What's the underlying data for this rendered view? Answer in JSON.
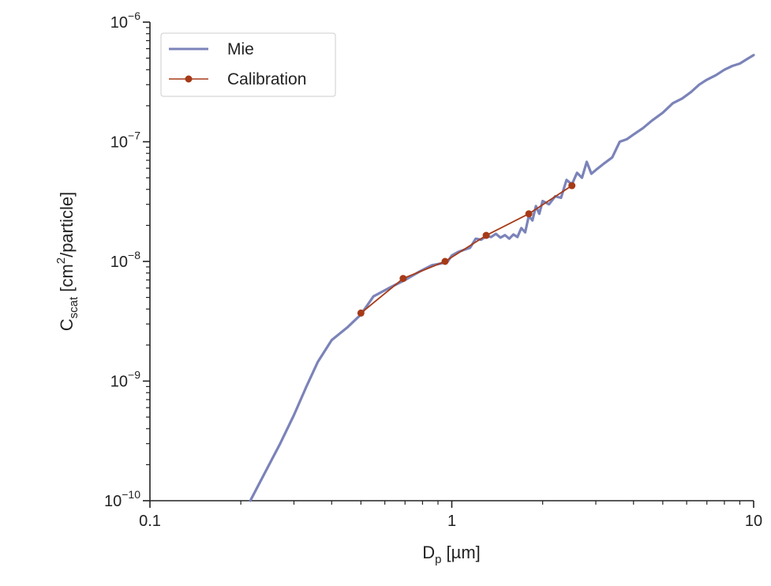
{
  "chart_data": {
    "type": "line",
    "xlabel_main": "D",
    "xlabel_sub": "p",
    "xlabel_rest": " [µm]",
    "ylabel_main": "C",
    "ylabel_sub": "scat",
    "ylabel_rest1": " [cm",
    "ylabel_sup": "2",
    "ylabel_rest2": "/particle]",
    "x_scale": "log",
    "y_scale": "log",
    "xlim": [
      0.1,
      10
    ],
    "ylim": [
      1e-10,
      1e-06
    ],
    "x_ticks": [
      {
        "value": 0.1,
        "label": "0.1"
      },
      {
        "value": 1,
        "label": "1"
      },
      {
        "value": 10,
        "label": "10"
      }
    ],
    "y_ticks": [
      {
        "value": 1e-10,
        "base": "10",
        "exp": "−10"
      },
      {
        "value": 1e-09,
        "base": "10",
        "exp": "−9"
      },
      {
        "value": 1e-08,
        "base": "10",
        "exp": "−8"
      },
      {
        "value": 1e-07,
        "base": "10",
        "exp": "−7"
      },
      {
        "value": 1e-06,
        "base": "10",
        "exp": "−6"
      }
    ],
    "grid": false,
    "legend_position": "top-left",
    "series": [
      {
        "name": "Mie",
        "color": "#7b83b9",
        "style": "line",
        "x": [
          0.215,
          0.24,
          0.27,
          0.3,
          0.33,
          0.36,
          0.4,
          0.45,
          0.5,
          0.55,
          0.62,
          0.7,
          0.78,
          0.86,
          0.92,
          0.97,
          1.0,
          1.05,
          1.1,
          1.15,
          1.2,
          1.25,
          1.3,
          1.35,
          1.4,
          1.45,
          1.5,
          1.55,
          1.6,
          1.65,
          1.7,
          1.75,
          1.8,
          1.85,
          1.9,
          1.95,
          2.0,
          2.1,
          2.2,
          2.3,
          2.4,
          2.5,
          2.6,
          2.7,
          2.8,
          2.9,
          3.0,
          3.2,
          3.4,
          3.6,
          3.8,
          4.0,
          4.3,
          4.6,
          5.0,
          5.4,
          5.8,
          6.2,
          6.6,
          7.0,
          7.5,
          8.0,
          8.5,
          9.0,
          9.5,
          10.0
        ],
        "y": [
          1e-10,
          1.7e-10,
          3e-10,
          5.2e-10,
          9e-10,
          1.45e-09,
          2.2e-09,
          2.8e-09,
          3.6e-09,
          5.1e-09,
          6e-09,
          7e-09,
          8.2e-09,
          9.3e-09,
          9.6e-09,
          1e-08,
          1.12e-08,
          1.2e-08,
          1.25e-08,
          1.3e-08,
          1.55e-08,
          1.52e-08,
          1.62e-08,
          1.6e-08,
          1.7e-08,
          1.58e-08,
          1.66e-08,
          1.55e-08,
          1.68e-08,
          1.6e-08,
          1.9e-08,
          1.75e-08,
          2.4e-08,
          2.2e-08,
          2.9e-08,
          2.5e-08,
          3.2e-08,
          3e-08,
          3.5e-08,
          3.4e-08,
          4.8e-08,
          4.4e-08,
          5.5e-08,
          5e-08,
          6.8e-08,
          5.4e-08,
          5.8e-08,
          6.6e-08,
          7.4e-08,
          1e-07,
          1.05e-07,
          1.15e-07,
          1.3e-07,
          1.5e-07,
          1.75e-07,
          2.1e-07,
          2.3e-07,
          2.6e-07,
          3e-07,
          3.3e-07,
          3.6e-07,
          4e-07,
          4.3e-07,
          4.5e-07,
          4.9e-07,
          5.3e-07
        ]
      },
      {
        "name": "Calibration",
        "color": "#a63a18",
        "style": "line+markers",
        "x": [
          0.5,
          0.69,
          0.95,
          1.3,
          1.8,
          2.5
        ],
        "y": [
          3.7e-09,
          7.2e-09,
          1e-08,
          1.65e-08,
          2.5e-08,
          4.3e-08
        ]
      }
    ]
  }
}
